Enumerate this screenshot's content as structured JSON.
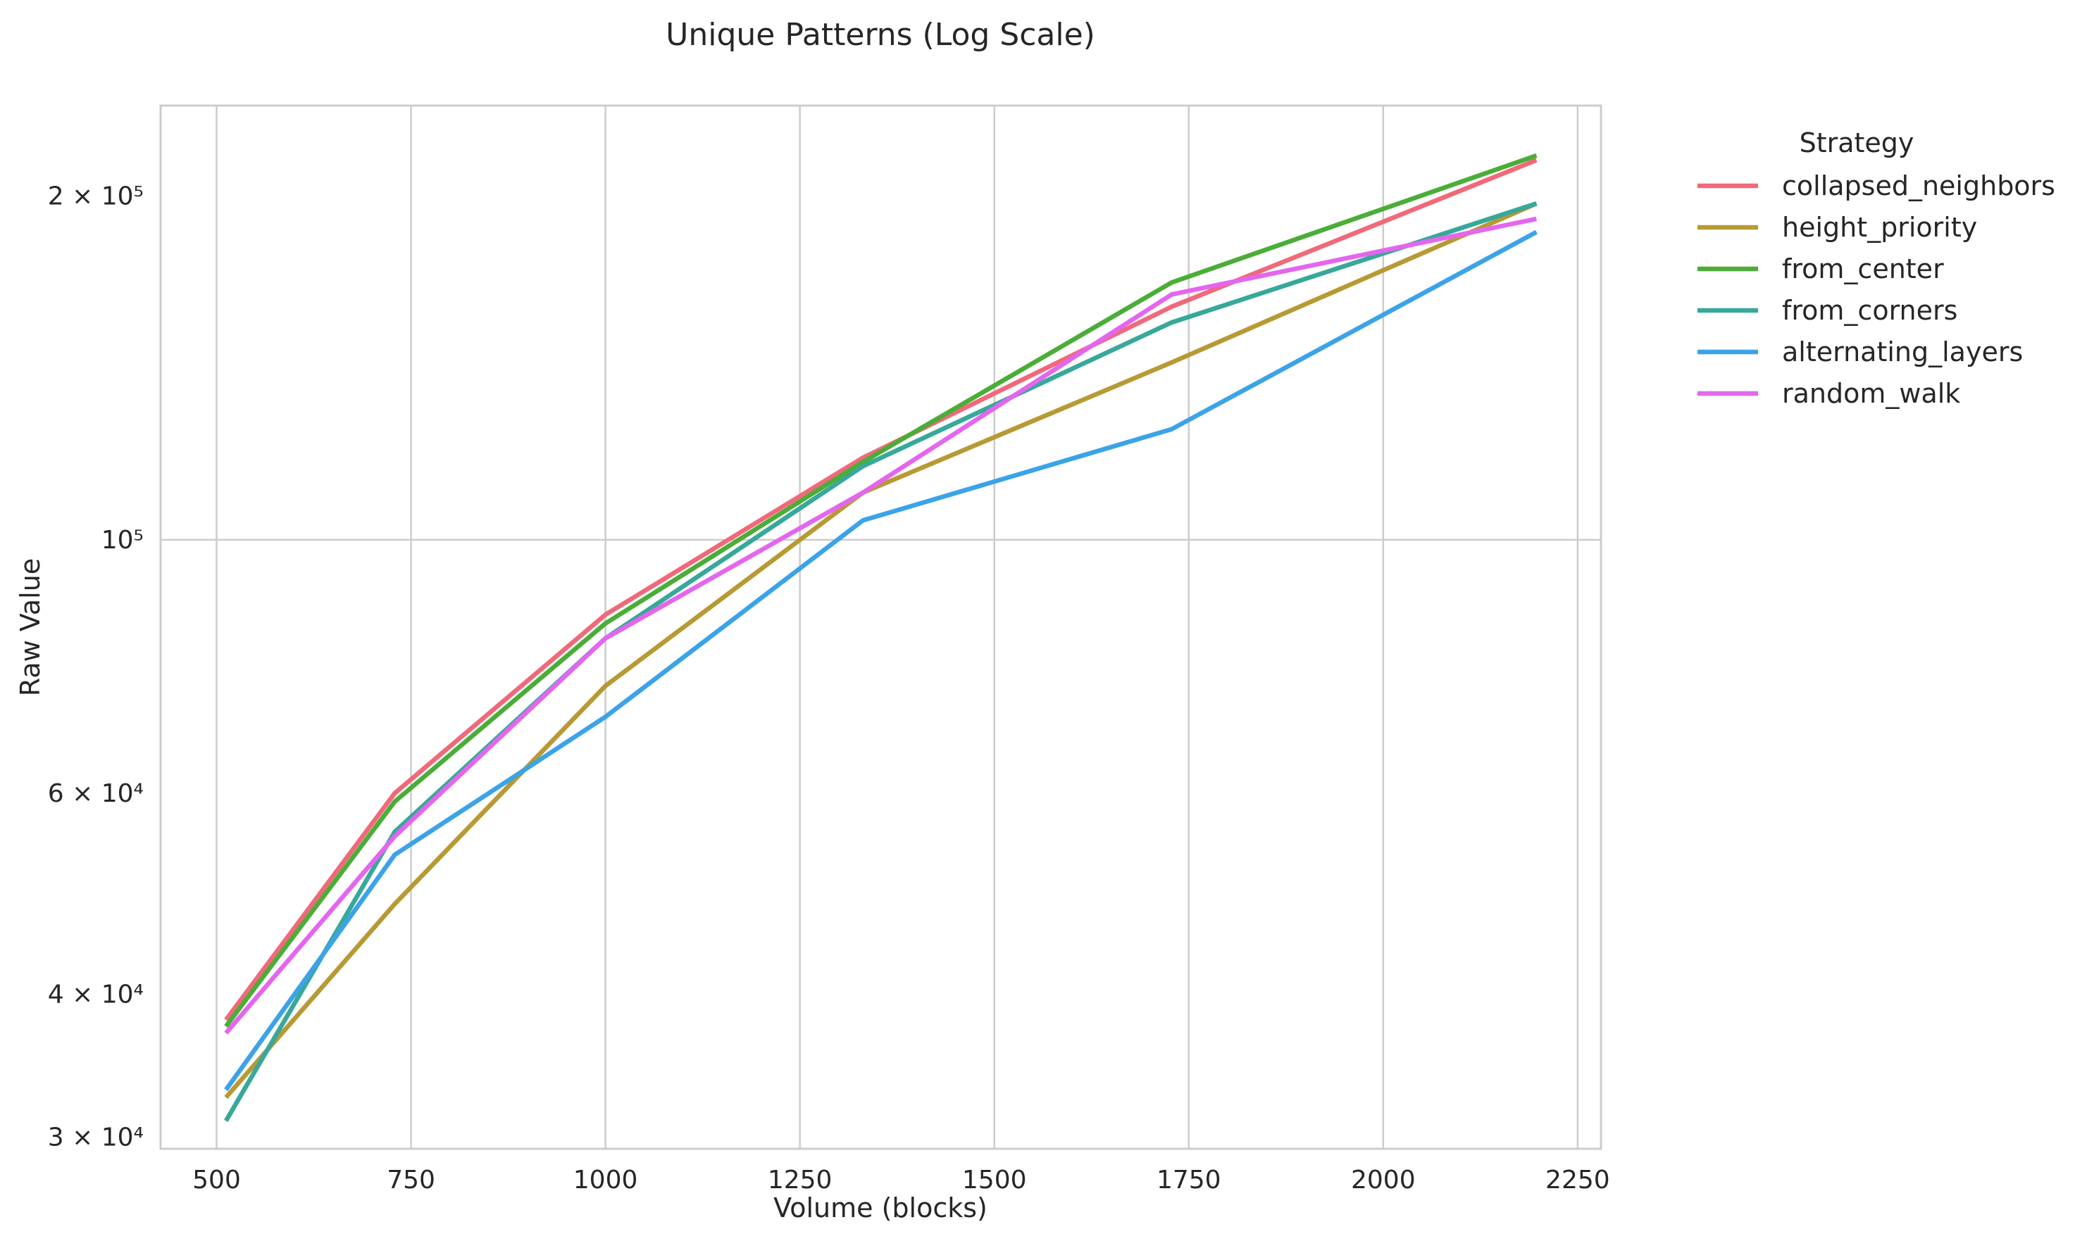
{
  "chart_data": {
    "type": "line",
    "title": "Unique Patterns (Log Scale)",
    "xlabel": "Volume (blocks)",
    "ylabel": "Raw Value",
    "yscale": "log",
    "grid": true,
    "legend_placement": "outside right",
    "legend_title": "Strategy",
    "xlim": [
      428,
      2280
    ],
    "ylim": [
      29300,
      240000
    ],
    "x": [
      512,
      729,
      1000,
      1331,
      1728,
      2197
    ],
    "x_ticks": [
      {
        "value": 500,
        "label": "500"
      },
      {
        "value": 750,
        "label": "750"
      },
      {
        "value": 1000,
        "label": "1000"
      },
      {
        "value": 1250,
        "label": "1250"
      },
      {
        "value": 1500,
        "label": "1500"
      },
      {
        "value": 1750,
        "label": "1750"
      },
      {
        "value": 2000,
        "label": "2000"
      },
      {
        "value": 2250,
        "label": "2250"
      }
    ],
    "y_ticks": [
      {
        "value": 30000,
        "label": "3 × 10⁴"
      },
      {
        "value": 40000,
        "label": "4 × 10⁴"
      },
      {
        "value": 60000,
        "label": "6 × 10⁴"
      },
      {
        "value": 100000,
        "label": "10⁵"
      },
      {
        "value": 200000,
        "label": "2 × 10⁵"
      }
    ],
    "series": [
      {
        "name": "collapsed_neighbors",
        "color": "#f0697a",
        "values": [
          38000,
          60000,
          86000,
          118000,
          160000,
          215000
        ]
      },
      {
        "name": "height_priority",
        "color": "#b79a34",
        "values": [
          32500,
          48000,
          74500,
          110000,
          143000,
          197000
        ]
      },
      {
        "name": "from_center",
        "color": "#4aad37",
        "values": [
          37500,
          59000,
          84500,
          117000,
          168000,
          217000
        ]
      },
      {
        "name": "from_corners",
        "color": "#37a89a",
        "values": [
          31000,
          55500,
          82000,
          116000,
          155000,
          197000
        ]
      },
      {
        "name": "alternating_layers",
        "color": "#3ba3e8",
        "values": [
          33000,
          53000,
          70000,
          104000,
          125000,
          186000
        ]
      },
      {
        "name": "random_walk",
        "color": "#e466ee",
        "values": [
          37000,
          55000,
          82000,
          110000,
          164000,
          191000
        ]
      }
    ]
  }
}
